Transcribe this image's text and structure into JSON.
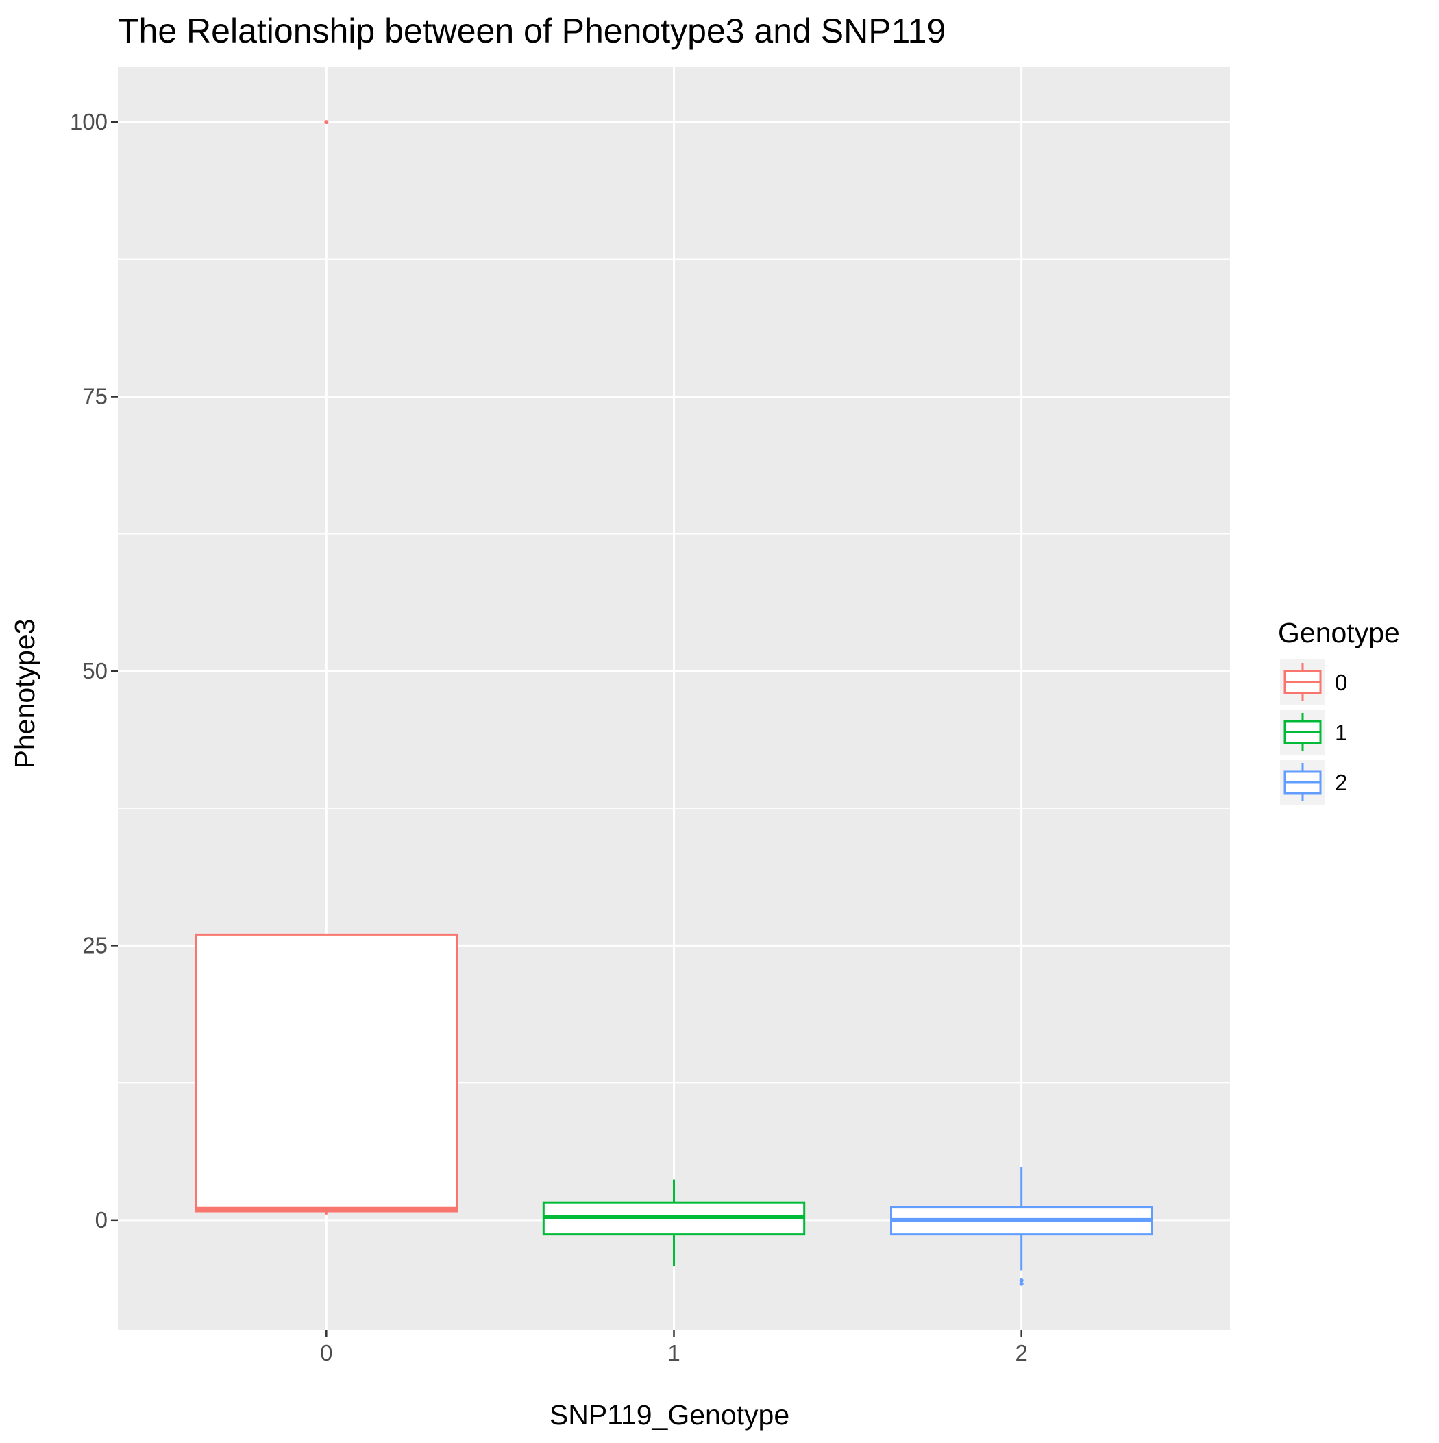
{
  "chart_data": {
    "type": "boxplot",
    "title": "The Relationship between of Phenotype3 and SNP119",
    "xlabel": "SNP119_Genotype",
    "ylabel": "Phenotype3",
    "categories": [
      "0",
      "1",
      "2"
    ],
    "ylim": [
      -10,
      105
    ],
    "y_ticks": [
      0,
      25,
      50,
      75,
      100
    ],
    "y_tick_labels": [
      "0",
      "25",
      "50",
      "75",
      "100"
    ],
    "grid": true,
    "legend": {
      "title": "Genotype",
      "position": "right",
      "entries": [
        {
          "label": "0",
          "color": "#F8766D"
        },
        {
          "label": "1",
          "color": "#00BA38"
        },
        {
          "label": "2",
          "color": "#619CFF"
        }
      ]
    },
    "series": [
      {
        "category": "0",
        "color": "#F8766D",
        "q1": 0.8,
        "median": 1.0,
        "q3": 26.0,
        "whisker_low": 0.5,
        "whisker_high": 26.0,
        "outliers": [
          100
        ]
      },
      {
        "category": "1",
        "color": "#00BA38",
        "q1": -1.3,
        "median": 0.3,
        "q3": 1.6,
        "whisker_low": -4.2,
        "whisker_high": 3.7,
        "outliers": []
      },
      {
        "category": "2",
        "color": "#619CFF",
        "q1": -1.3,
        "median": 0.0,
        "q3": 1.2,
        "whisker_low": -4.6,
        "whisker_high": 4.8,
        "outliers": [
          -5.5,
          -5.8
        ]
      }
    ]
  }
}
